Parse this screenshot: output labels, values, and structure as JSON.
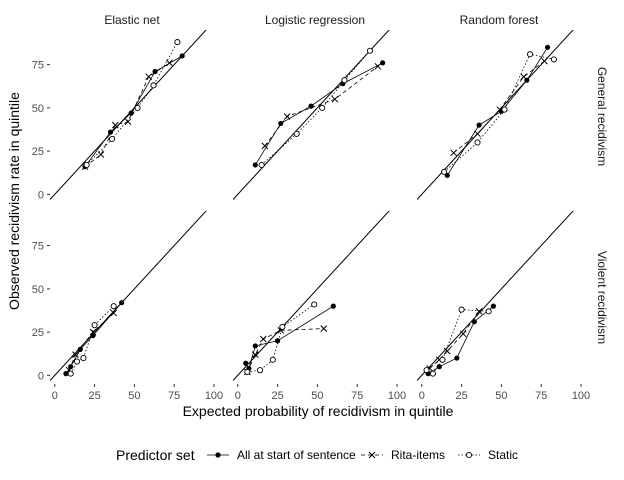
{
  "chart_data": {
    "type": "scatter",
    "title": "",
    "xlabel": "Expected probability of recidivism in quintile",
    "ylabel": "Observed recidivism rate in quintile",
    "xlim": [
      -3,
      100
    ],
    "ylim": [
      -5,
      95
    ],
    "x_ticks": [
      0,
      25,
      50,
      75,
      100
    ],
    "y_ticks": [
      0,
      25,
      50,
      75
    ],
    "grid": false,
    "reference_line": "y = x",
    "columns": [
      "Elastic net",
      "Logistic regression",
      "Random forest"
    ],
    "rows": [
      "General recidivism",
      "Violent recidivism"
    ],
    "legend": {
      "title": "Predictor set",
      "placement": "bottom",
      "entries": [
        "All at start of sentence",
        "Rita-items",
        "Static"
      ]
    },
    "series_styles": {
      "All at start of sentence": {
        "marker": "filled-circle",
        "line": "solid",
        "color": "#000000"
      },
      "Rita-items": {
        "marker": "cross",
        "line": "dashed",
        "color": "#000000"
      },
      "Static": {
        "marker": "open-circle",
        "line": "dotted",
        "color": "#000000"
      }
    },
    "panels": [
      {
        "model": "Elastic net",
        "outcome": "General recidivism",
        "series": [
          {
            "name": "All at start of sentence",
            "x": [
              19,
              35,
              48,
              63,
              80
            ],
            "y": [
              16,
              36,
              47,
              71,
              80
            ]
          },
          {
            "name": "Rita-items",
            "x": [
              19,
              29,
              38,
              46,
              59,
              72
            ],
            "y": [
              16,
              23,
              40,
              42,
              68,
              76
            ]
          },
          {
            "name": "Static",
            "x": [
              20,
              36,
              52,
              62,
              77
            ],
            "y": [
              17,
              32,
              50,
              63,
              88
            ]
          }
        ]
      },
      {
        "model": "Logistic regression",
        "outcome": "General recidivism",
        "series": [
          {
            "name": "All at start of sentence",
            "x": [
              11,
              27,
              46,
              66,
              91
            ],
            "y": [
              17,
              41,
              51,
              64,
              76
            ]
          },
          {
            "name": "Rita-items",
            "x": [
              17,
              31,
              61,
              88
            ],
            "y": [
              28,
              45,
              55,
              74
            ]
          },
          {
            "name": "Static",
            "x": [
              15,
              37,
              53,
              67,
              83
            ],
            "y": [
              17,
              35,
              50,
              66,
              83
            ]
          }
        ]
      },
      {
        "model": "Random forest",
        "outcome": "General recidivism",
        "series": [
          {
            "name": "All at start of sentence",
            "x": [
              16,
              36,
              50,
              66,
              79
            ],
            "y": [
              11,
              40,
              48,
              66,
              85
            ]
          },
          {
            "name": "Rita-items",
            "x": [
              20,
              35,
              49,
              64,
              77
            ],
            "y": [
              24,
              35,
              49,
              68,
              77
            ]
          },
          {
            "name": "Static",
            "x": [
              14,
              35,
              52,
              68,
              83
            ],
            "y": [
              13,
              30,
              49,
              81,
              78
            ]
          }
        ]
      },
      {
        "model": "Elastic net",
        "outcome": "Violent recidivism",
        "series": [
          {
            "name": "All at start of sentence",
            "x": [
              7,
              10,
              16,
              24,
              42
            ],
            "y": [
              1,
              5,
              15,
              23,
              42
            ]
          },
          {
            "name": "Rita-items",
            "x": [
              9,
              13,
              24,
              37
            ],
            "y": [
              3,
              12,
              25,
              36
            ]
          },
          {
            "name": "Static",
            "x": [
              10,
              14,
              18,
              25,
              37
            ],
            "y": [
              1,
              8,
              10,
              29,
              40
            ]
          }
        ]
      },
      {
        "model": "Logistic regression",
        "outcome": "Violent recidivism",
        "series": [
          {
            "name": "All at start of sentence",
            "x": [
              5,
              7,
              11,
              25,
              60
            ],
            "y": [
              7,
              4,
              17,
              20,
              40
            ]
          },
          {
            "name": "Rita-items",
            "x": [
              6,
              11,
              16,
              27,
              54
            ],
            "y": [
              2,
              12,
              21,
              26,
              27
            ]
          },
          {
            "name": "Static",
            "x": [
              6,
              14,
              22,
              28,
              48
            ],
            "y": [
              2,
              3,
              9,
              28,
              41
            ]
          }
        ]
      },
      {
        "model": "Random forest",
        "outcome": "Violent recidivism",
        "series": [
          {
            "name": "All at start of sentence",
            "x": [
              4,
              11,
              22,
              33,
              45
            ],
            "y": [
              1,
              5,
              10,
              31,
              40
            ]
          },
          {
            "name": "Rita-items",
            "x": [
              5,
              11,
              16,
              26,
              36
            ],
            "y": [
              4,
              9,
              14,
              24,
              37
            ]
          },
          {
            "name": "Static",
            "x": [
              3,
              7,
              13,
              25,
              42
            ],
            "y": [
              3,
              1,
              9,
              38,
              37
            ]
          }
        ]
      }
    ]
  }
}
